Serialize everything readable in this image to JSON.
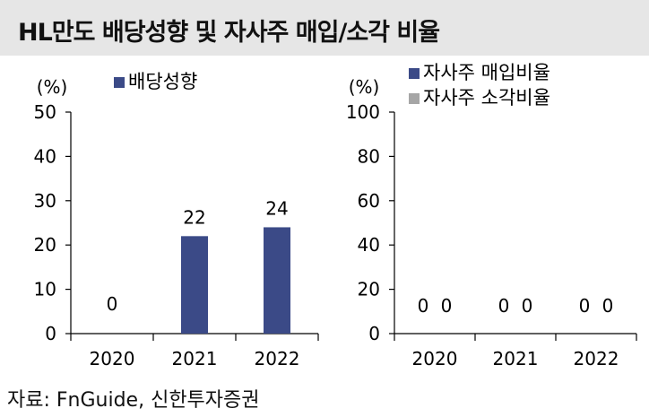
{
  "title": "HL만도 배당성향 및 자사주 매입/소각 비율",
  "source": "자료: FnGuide, 신한투자증권",
  "colors": {
    "series_primary": "#3b4a87",
    "series_secondary": "#a6a6a6",
    "title_bg": "#e6e6e6"
  },
  "chart_data": [
    {
      "type": "bar",
      "title": "",
      "ylabel": "(%)",
      "xlabel": "",
      "categories": [
        "2020",
        "2021",
        "2022"
      ],
      "series": [
        {
          "name": "배당성향",
          "values": [
            0,
            22,
            24
          ],
          "labels": [
            "0",
            "22",
            "24"
          ]
        }
      ],
      "ylim": [
        0,
        50
      ],
      "yticks": [
        "0",
        "10",
        "20",
        "30",
        "40",
        "50"
      ],
      "legend": "top-center",
      "grid": false
    },
    {
      "type": "bar",
      "title": "",
      "ylabel": "(%)",
      "xlabel": "",
      "categories": [
        "2020",
        "2021",
        "2022"
      ],
      "series": [
        {
          "name": "자사주 매입비율",
          "values": [
            0,
            0,
            0
          ],
          "labels": [
            "0",
            "0",
            "0"
          ]
        },
        {
          "name": "자사주 소각비율",
          "values": [
            0,
            0,
            0
          ],
          "labels": [
            "0",
            "0",
            "0"
          ]
        }
      ],
      "ylim": [
        0,
        100
      ],
      "yticks": [
        "0",
        "20",
        "40",
        "60",
        "80",
        "100"
      ],
      "legend": "top-center",
      "grid": false
    }
  ]
}
